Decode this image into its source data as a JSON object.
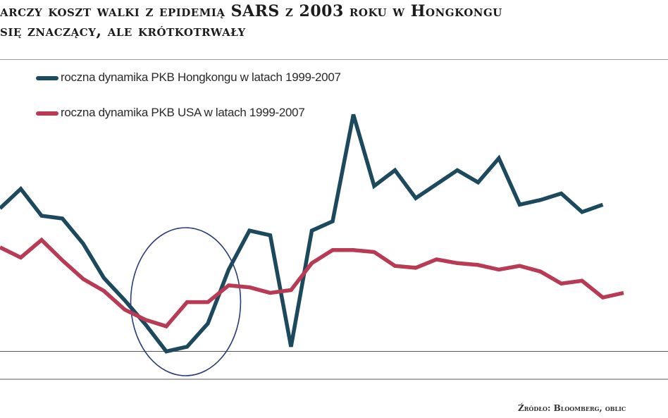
{
  "chart_data": {
    "type": "line",
    "title_line1": "arczy koszt walki z epidemią SARS z 2003 roku w Hongkongu",
    "title_line2": "się znaczący, ale krótkotrwały",
    "series": [
      {
        "name": "roczna dynamika PKB Hongkongu w latach 1999-2007",
        "color": "#1c4a5c",
        "values": [
          2.4,
          4.5,
          1.6,
          1.3,
          -1.4,
          -5.1,
          -7.5,
          -10.1,
          -13.0,
          -12.5,
          -10.0,
          -4.2,
          0.0,
          -0.5,
          -12.5,
          0.0,
          1.0,
          12.5,
          4.8,
          6.5,
          3.5,
          5.0,
          6.5,
          5.2,
          7.8,
          2.8,
          3.3,
          4.0,
          2.0,
          2.8
        ],
        "annotation": "circle"
      },
      {
        "name": "roczna dynamika PKB USA w latach 1999-2007",
        "color": "#b83a55",
        "values": [
          -1.8,
          -2.9,
          -1.0,
          -3.2,
          -5.2,
          -6.5,
          -8.5,
          -9.6,
          -10.3,
          -7.7,
          -7.7,
          -5.9,
          -6.1,
          -6.7,
          -6.4,
          -3.5,
          -2.1,
          -2.1,
          -2.3,
          -3.8,
          -4.0,
          -3.1,
          -3.5,
          -3.7,
          -4.2,
          -3.8,
          -4.4,
          -5.7,
          -5.4,
          -7.2,
          -6.7
        ],
        "annotation": ""
      }
    ],
    "xlabel": "",
    "ylabel": "",
    "ylim": [
      -16,
      18
    ],
    "grid": false,
    "baseline_value": -13.0,
    "legend_position": "top-left"
  },
  "source": "Źródło: Bloomberg, oblic"
}
